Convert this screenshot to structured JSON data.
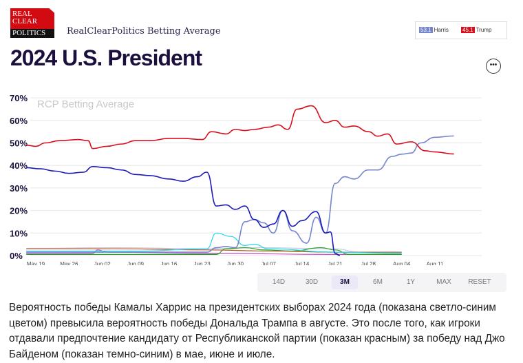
{
  "logo": {
    "line1": "REAL",
    "line2": "CLEAR",
    "line3": "POLITICS"
  },
  "header": {
    "subtitle": "RealClearPolitics Betting Average",
    "title": "2024 U.S. President",
    "more_icon": "ellipsis-icon"
  },
  "legend": [
    {
      "value": "53.1",
      "name": "Harris",
      "color": "#7485cd"
    },
    {
      "value": "45.1",
      "name": "Trump",
      "color": "#d5101c"
    }
  ],
  "ranges": {
    "items": [
      "14D",
      "30D",
      "3M",
      "6M",
      "1Y",
      "MAX",
      "RESET"
    ],
    "active": "3M"
  },
  "caption": "Вероятность победы Камалы Харрис на президентских выборах 2024 года (показана светло-синим цветом) превысила вероятность победы Дональда Трампа в августе. Это после того, как игроки отдавали предпочтение кандидату от Республиканской партии (показан красным) за победу над Джо Байденом (показан темно-синим) в мае, июне и июле.",
  "chart_data": {
    "type": "line",
    "watermark": "RCP Betting Average",
    "ylim": [
      0,
      70
    ],
    "yticks": [
      "0%",
      "10%",
      "20%",
      "30%",
      "40%",
      "50%",
      "60%",
      "70%"
    ],
    "xticks": [
      "May 19",
      "May 26",
      "Jun 02",
      "Jun 09",
      "Jun 16",
      "Jun 23",
      "Jun 30",
      "Jul 07",
      "Jul 14",
      "Jul 21",
      "Jul 28",
      "Aug 04",
      "Aug 11"
    ],
    "xrange": [
      "2024-05-19",
      "2024-08-15"
    ],
    "grid": true,
    "series": [
      {
        "name": "Trump",
        "color": "#d5101c",
        "points": [
          [
            "05-17",
            49
          ],
          [
            "05-19",
            48.5
          ],
          [
            "05-21",
            50
          ],
          [
            "05-24",
            51
          ],
          [
            "05-28",
            51.5
          ],
          [
            "05-30",
            51
          ],
          [
            "05-31",
            47.5
          ],
          [
            "06-03",
            48.5
          ],
          [
            "06-06",
            49.5
          ],
          [
            "06-09",
            51
          ],
          [
            "06-12",
            51
          ],
          [
            "06-16",
            52
          ],
          [
            "06-19",
            52
          ],
          [
            "06-23",
            51.5
          ],
          [
            "06-25",
            55
          ],
          [
            "06-28",
            54
          ],
          [
            "06-30",
            56
          ],
          [
            "07-02",
            55.5
          ],
          [
            "07-04",
            56
          ],
          [
            "07-07",
            57
          ],
          [
            "07-09",
            58
          ],
          [
            "07-11",
            56
          ],
          [
            "07-13",
            65
          ],
          [
            "07-16",
            66.5
          ],
          [
            "07-19",
            59
          ],
          [
            "07-21",
            60
          ],
          [
            "07-23",
            57
          ],
          [
            "07-25",
            57.5
          ],
          [
            "07-28",
            55
          ],
          [
            "07-30",
            53
          ],
          [
            "08-01",
            54
          ],
          [
            "08-03",
            49.5
          ],
          [
            "08-06",
            50.5
          ],
          [
            "08-09",
            46.5
          ],
          [
            "08-11",
            46
          ],
          [
            "08-15",
            45.1
          ]
        ]
      },
      {
        "name": "Biden",
        "color": "#1a1ab8",
        "points": [
          [
            "05-17",
            39
          ],
          [
            "05-20",
            38.5
          ],
          [
            "05-23",
            37.5
          ],
          [
            "05-26",
            36.5
          ],
          [
            "05-29",
            37
          ],
          [
            "05-31",
            39.5
          ],
          [
            "06-03",
            39
          ],
          [
            "06-06",
            38
          ],
          [
            "06-09",
            36
          ],
          [
            "06-12",
            35.5
          ],
          [
            "06-16",
            34
          ],
          [
            "06-19",
            33
          ],
          [
            "06-22",
            35
          ],
          [
            "06-24",
            37
          ],
          [
            "06-26",
            22
          ],
          [
            "06-28",
            22.5
          ],
          [
            "06-30",
            20.5
          ],
          [
            "07-02",
            22
          ],
          [
            "07-04",
            16
          ],
          [
            "07-06",
            12.5
          ],
          [
            "07-08",
            14
          ],
          [
            "07-10",
            20
          ],
          [
            "07-12",
            13
          ],
          [
            "07-14",
            15.5
          ],
          [
            "07-17",
            19.5
          ],
          [
            "07-19",
            10
          ],
          [
            "07-20",
            10.5
          ],
          [
            "07-21",
            1
          ],
          [
            "07-22",
            0
          ]
        ]
      },
      {
        "name": "Harris",
        "color": "#7485cd",
        "points": [
          [
            "05-17",
            1.5
          ],
          [
            "06-10",
            1.5
          ],
          [
            "06-24",
            1.5
          ],
          [
            "06-26",
            3.5
          ],
          [
            "06-28",
            4
          ],
          [
            "06-30",
            3.5
          ],
          [
            "07-02",
            15
          ],
          [
            "07-04",
            16
          ],
          [
            "07-06",
            14.5
          ],
          [
            "07-08",
            10
          ],
          [
            "07-10",
            20
          ],
          [
            "07-12",
            11
          ],
          [
            "07-15",
            5.5
          ],
          [
            "07-17",
            17
          ],
          [
            "07-19",
            10
          ],
          [
            "07-21",
            32
          ],
          [
            "07-23",
            35
          ],
          [
            "07-25",
            34
          ],
          [
            "07-28",
            38
          ],
          [
            "07-30",
            38
          ],
          [
            "08-02",
            44
          ],
          [
            "08-04",
            45
          ],
          [
            "08-06",
            45.5
          ],
          [
            "08-08",
            50
          ],
          [
            "08-11",
            52.5
          ],
          [
            "08-15",
            53.1
          ]
        ]
      },
      {
        "color": "#1fd6f0",
        "points": [
          [
            "05-17",
            2
          ],
          [
            "06-10",
            2
          ],
          [
            "06-24",
            3
          ],
          [
            "06-26",
            10
          ],
          [
            "06-29",
            8.5
          ],
          [
            "07-02",
            4.5
          ],
          [
            "07-04",
            5
          ],
          [
            "07-07",
            3
          ],
          [
            "07-21",
            1.5
          ],
          [
            "08-04",
            1
          ]
        ]
      },
      {
        "color": "#b5561c",
        "points": [
          [
            "05-17",
            3
          ],
          [
            "06-05",
            3
          ],
          [
            "06-24",
            2.5
          ],
          [
            "07-07",
            2
          ],
          [
            "07-21",
            1.5
          ],
          [
            "08-04",
            1.5
          ]
        ]
      },
      {
        "color": "#1ca51c",
        "points": [
          [
            "05-17",
            0.5
          ],
          [
            "06-26",
            0.5
          ],
          [
            "06-28",
            3
          ],
          [
            "07-02",
            3.5
          ],
          [
            "07-06",
            2.5
          ],
          [
            "07-12",
            2
          ],
          [
            "07-18",
            3.5
          ],
          [
            "07-21",
            2.5
          ],
          [
            "07-24",
            0.5
          ],
          [
            "08-04",
            0.5
          ]
        ]
      },
      {
        "color": "#c24bc2",
        "points": [
          [
            "05-17",
            1
          ],
          [
            "05-31",
            1
          ],
          [
            "06-01",
            2.5
          ],
          [
            "06-03",
            1.5
          ],
          [
            "06-24",
            1
          ],
          [
            "07-21",
            0.5
          ],
          [
            "08-04",
            0.5
          ]
        ]
      },
      {
        "color": "#c6c6e6",
        "points": [
          [
            "05-17",
            3.2
          ],
          [
            "06-05",
            3.5
          ],
          [
            "06-24",
            3
          ],
          [
            "07-05",
            3.5
          ],
          [
            "07-21",
            3
          ],
          [
            "07-26",
            1.5
          ],
          [
            "08-04",
            1.5
          ]
        ]
      }
    ]
  }
}
